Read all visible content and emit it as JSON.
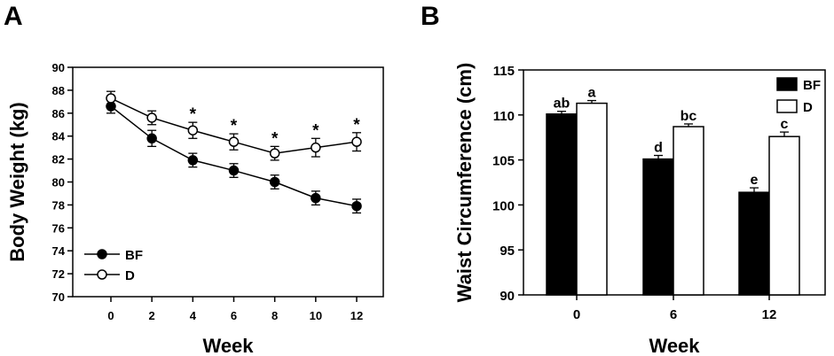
{
  "panels": {
    "a_label": "A",
    "b_label": "B"
  },
  "chart_data": [
    {
      "type": "line",
      "panel": "A",
      "xlabel": "Week",
      "ylabel": "Body Weight (kg)",
      "x": [
        0,
        2,
        4,
        6,
        8,
        10,
        12
      ],
      "xticks": [
        "0",
        "2",
        "4",
        "6",
        "8",
        "10",
        "12"
      ],
      "ylim": [
        70,
        90
      ],
      "yticks": [
        "70",
        "72",
        "74",
        "76",
        "78",
        "80",
        "82",
        "84",
        "86",
        "88",
        "90"
      ],
      "series": [
        {
          "name": "BF",
          "marker": "filled-circle",
          "values": [
            86.6,
            83.8,
            81.9,
            81.0,
            80.0,
            78.6,
            77.9
          ],
          "error": [
            0.6,
            0.7,
            0.6,
            0.6,
            0.6,
            0.6,
            0.6
          ]
        },
        {
          "name": "D",
          "marker": "open-circle",
          "values": [
            87.3,
            85.6,
            84.5,
            83.5,
            82.5,
            83.0,
            83.5
          ],
          "error": [
            0.6,
            0.6,
            0.7,
            0.7,
            0.6,
            0.8,
            0.8
          ]
        }
      ],
      "annotations": [
        {
          "x": 4,
          "text": "*"
        },
        {
          "x": 6,
          "text": "*"
        },
        {
          "x": 8,
          "text": "*"
        },
        {
          "x": 10,
          "text": "*"
        },
        {
          "x": 12,
          "text": "*"
        }
      ],
      "legend_position": "bottom-left",
      "grid": false
    },
    {
      "type": "bar",
      "panel": "B",
      "xlabel": "Week",
      "ylabel": "Waist Circumference (cm)",
      "categories": [
        "0",
        "6",
        "12"
      ],
      "ylim": [
        90,
        115
      ],
      "yticks": [
        "90",
        "95",
        "100",
        "105",
        "110",
        "115"
      ],
      "series": [
        {
          "name": "BF",
          "color": "#000000",
          "values": [
            110.1,
            105.1,
            101.4
          ],
          "error": [
            0.3,
            0.4,
            0.5
          ],
          "labels": [
            "ab",
            "d",
            "e"
          ]
        },
        {
          "name": "D",
          "color": "#ffffff",
          "values": [
            111.3,
            108.7,
            107.6
          ],
          "error": [
            0.3,
            0.3,
            0.5
          ],
          "labels": [
            "a",
            "bc",
            "c"
          ]
        }
      ],
      "legend_position": "top-right",
      "grid": false
    }
  ]
}
